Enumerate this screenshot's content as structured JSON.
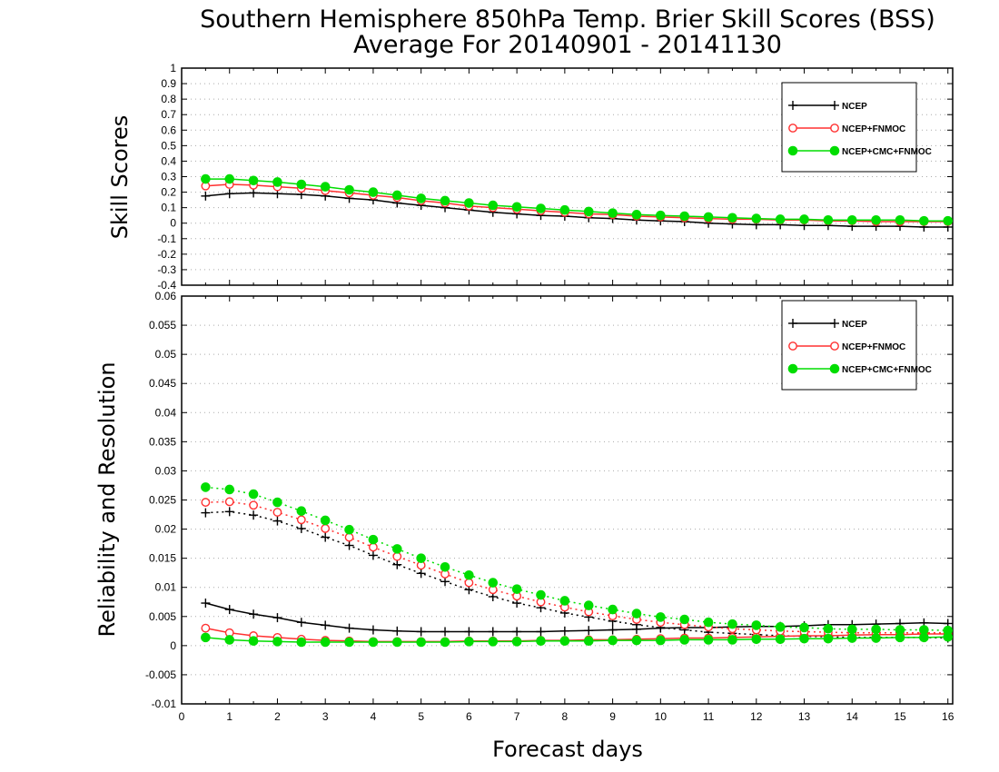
{
  "figure": {
    "title_line1": "Southern Hemisphere 850hPa Temp. Brier Skill Scores (BSS)",
    "title_line2": "Average For 20140901 - 20141130",
    "xlabel": "Forecast days"
  },
  "chart_data": [
    {
      "type": "line",
      "panel": "top",
      "ylabel": "Skill Scores",
      "xlim": [
        0,
        16.1
      ],
      "ylim": [
        -0.4,
        1
      ],
      "x_ticks": [
        0,
        1,
        2,
        3,
        4,
        5,
        6,
        7,
        8,
        9,
        10,
        11,
        12,
        13,
        14,
        15,
        16
      ],
      "y_ticks": [
        -0.4,
        -0.3,
        -0.2,
        -0.1,
        0,
        0.1,
        0.2,
        0.3,
        0.4,
        0.5,
        0.6,
        0.7,
        0.8,
        0.9,
        1
      ],
      "y_tick_labels": [
        "-0.4",
        "-0.3",
        "-0.2",
        "-0.1",
        "0",
        "0.1",
        "0.2",
        "0.3",
        "0.4",
        "0.5",
        "0.6",
        "0.7",
        "0.8",
        "0.9",
        "1"
      ],
      "grid": true,
      "legend_position": "top-right",
      "x": [
        0.5,
        1,
        1.5,
        2,
        2.5,
        3,
        3.5,
        4,
        4.5,
        5,
        5.5,
        6,
        6.5,
        7,
        7.5,
        8,
        8.5,
        9,
        9.5,
        10,
        10.5,
        11,
        11.5,
        12,
        12.5,
        13,
        13.5,
        14,
        14.5,
        15,
        15.5,
        16
      ],
      "series": [
        {
          "name": "NCEP",
          "color": "#000000",
          "marker": "plus",
          "style": "solid",
          "values": [
            0.175,
            0.19,
            0.195,
            0.19,
            0.185,
            0.175,
            0.16,
            0.15,
            0.13,
            0.115,
            0.1,
            0.085,
            0.07,
            0.06,
            0.05,
            0.045,
            0.035,
            0.03,
            0.02,
            0.015,
            0.01,
            0.0,
            -0.005,
            -0.01,
            -0.01,
            -0.015,
            -0.015,
            -0.02,
            -0.02,
            -0.02,
            -0.025,
            -0.025
          ]
        },
        {
          "name": "NCEP+FNMOC",
          "color": "#ff3030",
          "marker": "open-circle",
          "style": "solid",
          "values": [
            0.24,
            0.25,
            0.245,
            0.235,
            0.225,
            0.21,
            0.195,
            0.18,
            0.165,
            0.145,
            0.13,
            0.11,
            0.1,
            0.09,
            0.08,
            0.07,
            0.06,
            0.055,
            0.045,
            0.04,
            0.035,
            0.03,
            0.025,
            0.025,
            0.02,
            0.02,
            0.015,
            0.015,
            0.01,
            0.01,
            0.01,
            0.01
          ]
        },
        {
          "name": "NCEP+CMC+FNMOC",
          "color": "#00dd00",
          "marker": "filled-circle",
          "style": "solid",
          "values": [
            0.285,
            0.285,
            0.275,
            0.265,
            0.25,
            0.235,
            0.215,
            0.2,
            0.18,
            0.16,
            0.145,
            0.13,
            0.115,
            0.105,
            0.095,
            0.085,
            0.075,
            0.065,
            0.055,
            0.05,
            0.045,
            0.04,
            0.035,
            0.03,
            0.025,
            0.025,
            0.02,
            0.02,
            0.02,
            0.02,
            0.015,
            0.015
          ]
        }
      ]
    },
    {
      "type": "line",
      "panel": "bottom",
      "ylabel": "Reliability and Resolution",
      "xlim": [
        0,
        16.1
      ],
      "ylim": [
        -0.01,
        0.06
      ],
      "x_ticks": [
        0,
        1,
        2,
        3,
        4,
        5,
        6,
        7,
        8,
        9,
        10,
        11,
        12,
        13,
        14,
        15,
        16
      ],
      "y_ticks": [
        -0.01,
        -0.005,
        0,
        0.005,
        0.01,
        0.015,
        0.02,
        0.025,
        0.03,
        0.035,
        0.04,
        0.045,
        0.05,
        0.055,
        0.06
      ],
      "y_tick_labels": [
        "-0.01",
        "-0.005",
        "0",
        "0.005",
        "0.01",
        "0.015",
        "0.02",
        "0.025",
        "0.03",
        "0.035",
        "0.04",
        "0.045",
        "0.05",
        "0.055",
        "0.06"
      ],
      "grid": true,
      "legend_position": "top-right",
      "x": [
        0.5,
        1,
        1.5,
        2,
        2.5,
        3,
        3.5,
        4,
        4.5,
        5,
        5.5,
        6,
        6.5,
        7,
        7.5,
        8,
        8.5,
        9,
        9.5,
        10,
        10.5,
        11,
        11.5,
        12,
        12.5,
        13,
        13.5,
        14,
        14.5,
        15,
        15.5,
        16
      ],
      "series": [
        {
          "name": "NCEP",
          "color": "#000000",
          "marker": "plus",
          "style": "solid",
          "values": [
            0.0073,
            0.0062,
            0.0054,
            0.0048,
            0.004,
            0.0035,
            0.003,
            0.0027,
            0.0025,
            0.0024,
            0.0024,
            0.0024,
            0.0024,
            0.0024,
            0.0024,
            0.0025,
            0.0026,
            0.0027,
            0.0028,
            0.003,
            0.0031,
            0.0031,
            0.0032,
            0.0033,
            0.0033,
            0.0034,
            0.0036,
            0.0036,
            0.0037,
            0.0038,
            0.0039,
            0.0038
          ]
        },
        {
          "name": "NCEP",
          "color": "#000000",
          "marker": "plus",
          "style": "dotted",
          "values": [
            0.0228,
            0.023,
            0.0224,
            0.0214,
            0.0201,
            0.0186,
            0.0172,
            0.0155,
            0.0139,
            0.0124,
            0.011,
            0.0096,
            0.0084,
            0.0073,
            0.0065,
            0.0056,
            0.0049,
            0.0042,
            0.0036,
            0.0031,
            0.0027,
            0.0023,
            0.0021,
            0.0019,
            0.0017,
            0.0016,
            0.0015,
            0.0014,
            0.0014,
            0.0014,
            0.0014,
            0.0013
          ]
        },
        {
          "name": "NCEP+FNMOC",
          "color": "#ff3030",
          "marker": "open-circle",
          "style": "solid",
          "values": [
            0.003,
            0.0022,
            0.0017,
            0.0014,
            0.0011,
            0.0009,
            0.0008,
            0.0007,
            0.0007,
            0.0007,
            0.0007,
            0.0008,
            0.0008,
            0.0008,
            0.0009,
            0.0009,
            0.001,
            0.001,
            0.0011,
            0.0012,
            0.0013,
            0.0013,
            0.0014,
            0.0015,
            0.0016,
            0.0017,
            0.0017,
            0.0018,
            0.0019,
            0.0019,
            0.002,
            0.002
          ]
        },
        {
          "name": "NCEP+FNMOC",
          "color": "#ff3030",
          "marker": "open-circle",
          "style": "dotted",
          "values": [
            0.0246,
            0.0247,
            0.0241,
            0.0229,
            0.0216,
            0.0201,
            0.0186,
            0.0169,
            0.0153,
            0.0138,
            0.0123,
            0.0108,
            0.0096,
            0.0085,
            0.0075,
            0.0066,
            0.0058,
            0.0051,
            0.0045,
            0.004,
            0.0036,
            0.0032,
            0.0029,
            0.0027,
            0.0025,
            0.0024,
            0.0023,
            0.0022,
            0.0022,
            0.0022,
            0.0022,
            0.0022
          ]
        },
        {
          "name": "NCEP+CMC+FNMOC",
          "color": "#00dd00",
          "marker": "filled-circle",
          "style": "solid",
          "values": [
            0.0014,
            0.001,
            0.0008,
            0.0007,
            0.0006,
            0.0006,
            0.0006,
            0.0006,
            0.0006,
            0.0006,
            0.0006,
            0.0007,
            0.0007,
            0.0007,
            0.0008,
            0.0008,
            0.0008,
            0.0009,
            0.0009,
            0.0009,
            0.001,
            0.001,
            0.001,
            0.0011,
            0.0011,
            0.0012,
            0.0012,
            0.0013,
            0.0013,
            0.0014,
            0.0014,
            0.0015
          ]
        },
        {
          "name": "NCEP+CMC+FNMOC",
          "color": "#00dd00",
          "marker": "filled-circle",
          "style": "dotted",
          "values": [
            0.0272,
            0.0268,
            0.026,
            0.0246,
            0.0231,
            0.0215,
            0.0199,
            0.0182,
            0.0166,
            0.015,
            0.0135,
            0.0121,
            0.0108,
            0.0097,
            0.0087,
            0.0077,
            0.0069,
            0.0062,
            0.0055,
            0.0049,
            0.0045,
            0.004,
            0.0037,
            0.0035,
            0.0032,
            0.0031,
            0.0029,
            0.0028,
            0.0028,
            0.0027,
            0.0027,
            0.0026
          ]
        }
      ]
    }
  ]
}
